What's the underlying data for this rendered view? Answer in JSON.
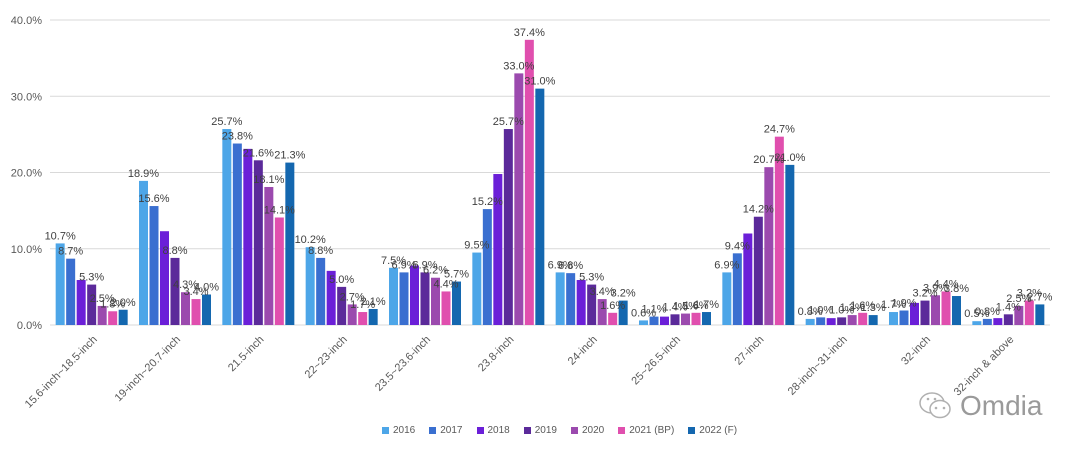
{
  "chart_data": {
    "type": "bar",
    "title": "",
    "xlabel": "",
    "ylabel": "",
    "ylim": [
      0,
      40
    ],
    "yticks": [
      "0.0%",
      "10.0%",
      "20.0%",
      "30.0%",
      "40.0%"
    ],
    "grid": true,
    "legend_position": "bottom",
    "categories": [
      "15.6-inch~18.5-inch",
      "19-inch~20.7-inch",
      "21.5-inch",
      "22~23-inch",
      "23.5~23.6-inch",
      "23.8-inch",
      "24-inch",
      "25~26.5-inch",
      "27-inch",
      "28-inch~31-inch",
      "32-inch",
      "32-inch & above"
    ],
    "series": [
      {
        "name": "2016",
        "color": "#4DA6E8",
        "values": [
          10.7,
          18.9,
          25.7,
          10.2,
          7.5,
          9.5,
          6.9,
          0.6,
          6.9,
          0.8,
          1.7,
          0.5
        ]
      },
      {
        "name": "2017",
        "color": "#3A6FD0",
        "values": [
          8.7,
          15.6,
          23.8,
          8.8,
          6.9,
          15.2,
          6.8,
          1.1,
          9.4,
          1.0,
          1.9,
          0.8
        ]
      },
      {
        "name": "2018",
        "color": "#6B1FD8",
        "values": [
          5.9,
          12.3,
          23.1,
          7.1,
          7.8,
          19.8,
          5.9,
          1.1,
          12.0,
          0.9,
          2.9,
          0.9
        ]
      },
      {
        "name": "2019",
        "color": "#5B2A9A",
        "values": [
          5.3,
          8.8,
          21.6,
          5.0,
          6.9,
          25.7,
          5.3,
          1.4,
          14.2,
          1.0,
          3.2,
          1.4
        ]
      },
      {
        "name": "2020",
        "color": "#9B4AAE",
        "values": [
          2.5,
          4.3,
          18.1,
          2.7,
          6.2,
          33.0,
          3.4,
          1.5,
          20.7,
          1.3,
          3.9,
          2.5
        ]
      },
      {
        "name": "2021 (BP)",
        "color": "#E04FAE",
        "values": [
          1.8,
          3.4,
          14.1,
          1.7,
          4.4,
          37.4,
          1.6,
          1.6,
          24.7,
          1.6,
          4.4,
          3.2
        ]
      },
      {
        "name": "2022 (F)",
        "color": "#1467AF",
        "values": [
          2.0,
          4.0,
          21.3,
          2.1,
          5.7,
          31.0,
          3.2,
          1.7,
          21.0,
          1.3,
          3.8,
          2.7
        ]
      }
    ]
  },
  "watermark": {
    "text": "Omdia",
    "icon": "wechat-icon"
  }
}
